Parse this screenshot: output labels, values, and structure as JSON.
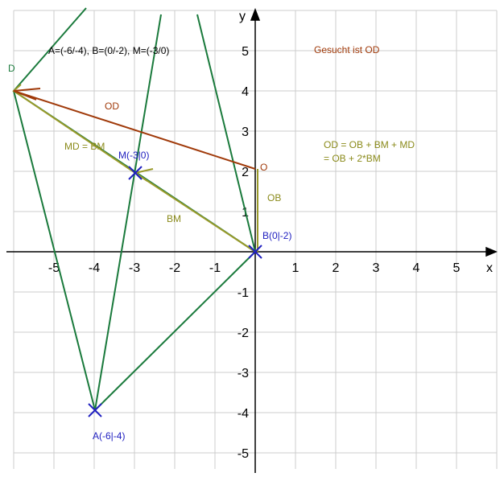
{
  "axes": {
    "x_label": "x",
    "y_label": "y",
    "x_ticks": [
      "-5",
      "-4",
      "-3",
      "-2",
      "-1",
      "1",
      "2",
      "3",
      "4",
      "5"
    ],
    "y_ticks": [
      "5",
      "4",
      "3",
      "2",
      "1",
      "-1",
      "-2",
      "-3",
      "-4",
      "-5"
    ]
  },
  "notes": {
    "given": "A=(-6/-4),   B=(0/-2),   M=(-3/0)",
    "wanted": "Gesucht ist OD",
    "formula_1": "OD = OB + BM + MD",
    "formula_2": "= OB + 2*BM"
  },
  "labels": {
    "od": "OD",
    "md_bm": "MD = BM",
    "m": "M(-3|0)",
    "bm": "BM",
    "ob": "OB",
    "o": "O",
    "b": "B(0|-2)",
    "a": "A(-6|-4)",
    "d": "D"
  }
}
